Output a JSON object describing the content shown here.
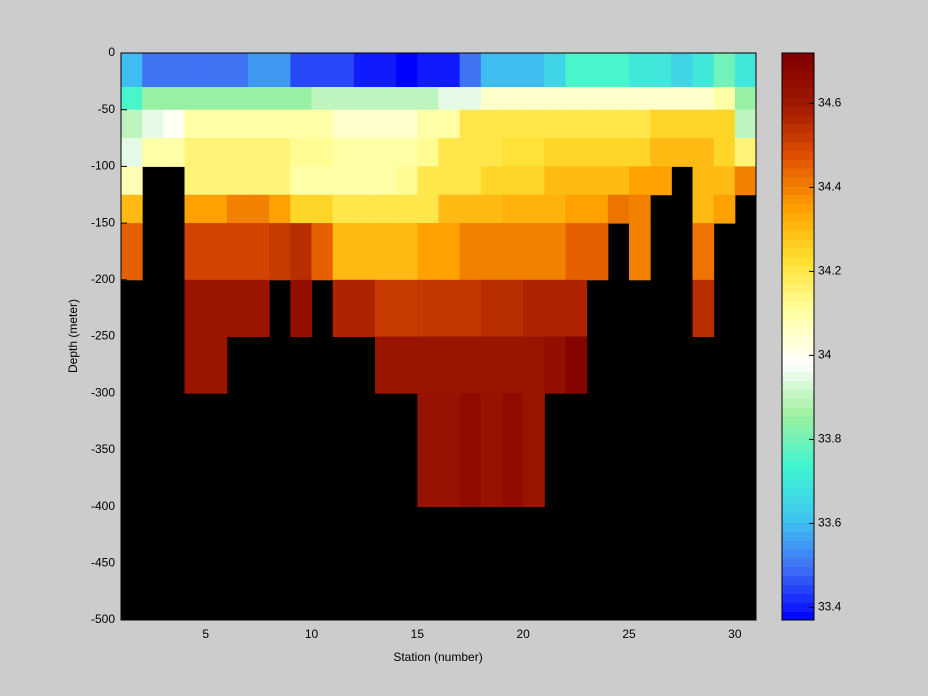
{
  "chart_data": {
    "type": "heatmap",
    "xlabel": "Station (number)",
    "ylabel": "Depth (meter)",
    "x_edges": [
      1,
      2,
      3,
      4,
      5,
      6,
      7,
      8,
      9,
      10,
      11,
      12,
      13,
      14,
      15,
      16,
      17,
      18,
      19,
      20,
      21,
      22,
      23,
      24,
      25,
      26,
      27,
      28,
      29,
      30,
      31
    ],
    "y_edges": [
      0,
      -30,
      -50,
      -75,
      -100,
      -125,
      -150,
      -200,
      -250,
      -300,
      -400,
      -500
    ],
    "xlim": [
      1,
      31
    ],
    "ylim": [
      -500,
      0
    ],
    "xticks": [
      5,
      10,
      15,
      20,
      25,
      30
    ],
    "yticks": [
      0,
      -50,
      -100,
      -150,
      -200,
      -250,
      -300,
      -350,
      -400,
      -450,
      -500
    ],
    "clim": [
      33.37,
      34.72
    ],
    "cticks": [
      33.4,
      33.6,
      33.8,
      34,
      34.2,
      34.4,
      34.6
    ],
    "colormap": [
      "#0000ff",
      "#3f6ff5",
      "#3fc8f0",
      "#40f5d0",
      "#a0f0a0",
      "#ffffff",
      "#ffffa0",
      "#ffe030",
      "#ffa000",
      "#e05000",
      "#a01800",
      "#800000"
    ],
    "nan_color": "#000000",
    "z": [
      [
        33.6,
        33.5,
        33.5,
        33.5,
        33.5,
        33.5,
        33.55,
        33.55,
        33.45,
        33.45,
        33.45,
        33.4,
        33.4,
        33.37,
        33.4,
        33.4,
        33.5,
        33.6,
        33.6,
        33.6,
        33.65,
        33.75,
        33.75,
        33.75,
        33.7,
        33.7,
        33.65,
        33.7,
        33.8,
        33.7
      ],
      [
        33.75,
        33.85,
        33.85,
        33.85,
        33.85,
        33.85,
        33.85,
        33.85,
        33.85,
        33.9,
        33.9,
        33.9,
        33.9,
        33.9,
        33.9,
        33.95,
        33.95,
        34.05,
        34.05,
        34.05,
        34.05,
        34.05,
        34.05,
        34.05,
        34.05,
        34.05,
        34.05,
        34.05,
        34.1,
        33.85
      ],
      [
        33.9,
        33.95,
        34.0,
        34.1,
        34.1,
        34.1,
        34.1,
        34.1,
        34.1,
        34.1,
        34.05,
        34.05,
        34.05,
        34.05,
        34.1,
        34.1,
        34.2,
        34.2,
        34.2,
        34.2,
        34.2,
        34.2,
        34.2,
        34.2,
        34.2,
        34.25,
        34.25,
        34.25,
        34.25,
        33.9
      ],
      [
        33.95,
        34.1,
        34.1,
        34.15,
        34.15,
        34.15,
        34.15,
        34.15,
        34.12,
        34.12,
        34.1,
        34.1,
        34.1,
        34.1,
        34.12,
        34.2,
        34.2,
        34.2,
        34.22,
        34.22,
        34.25,
        34.25,
        34.25,
        34.25,
        34.25,
        34.3,
        34.3,
        34.3,
        34.25,
        34.15
      ],
      [
        34.08,
        null,
        null,
        34.15,
        34.15,
        34.15,
        34.15,
        34.15,
        34.1,
        34.1,
        34.1,
        34.1,
        34.1,
        34.12,
        34.2,
        34.2,
        34.2,
        34.25,
        34.25,
        34.25,
        34.3,
        34.3,
        34.3,
        34.3,
        34.35,
        34.35,
        null,
        34.3,
        34.3,
        34.4
      ],
      [
        34.3,
        null,
        null,
        34.35,
        34.35,
        34.4,
        34.4,
        34.35,
        34.25,
        34.25,
        34.2,
        34.2,
        34.2,
        34.2,
        34.2,
        34.3,
        34.3,
        34.3,
        34.32,
        34.32,
        34.32,
        34.35,
        34.35,
        34.42,
        34.4,
        null,
        null,
        34.3,
        34.35,
        null
      ],
      [
        34.45,
        null,
        null,
        34.5,
        34.5,
        34.5,
        34.5,
        34.52,
        34.55,
        34.45,
        34.3,
        34.3,
        34.3,
        34.3,
        34.35,
        34.35,
        34.4,
        34.4,
        34.4,
        34.4,
        34.4,
        34.45,
        34.45,
        null,
        34.4,
        null,
        null,
        34.42,
        null,
        null
      ],
      [
        null,
        null,
        null,
        34.62,
        34.62,
        34.62,
        34.62,
        null,
        34.65,
        null,
        34.57,
        34.57,
        34.52,
        34.52,
        34.53,
        34.53,
        34.53,
        34.55,
        34.55,
        34.57,
        34.57,
        34.57,
        null,
        null,
        null,
        null,
        null,
        34.55,
        null,
        null
      ],
      [
        null,
        null,
        null,
        34.62,
        34.62,
        null,
        null,
        null,
        null,
        null,
        null,
        null,
        34.62,
        34.62,
        34.62,
        34.62,
        34.62,
        34.62,
        34.62,
        34.62,
        34.65,
        34.7,
        null,
        null,
        null,
        null,
        null,
        null,
        null,
        null
      ],
      [
        null,
        null,
        null,
        null,
        null,
        null,
        null,
        null,
        null,
        null,
        null,
        null,
        null,
        null,
        34.63,
        34.63,
        34.66,
        34.63,
        34.66,
        34.62,
        null,
        null,
        null,
        null,
        null,
        null,
        null,
        null,
        null,
        null
      ],
      [
        null,
        null,
        null,
        null,
        null,
        null,
        null,
        null,
        null,
        null,
        null,
        null,
        null,
        null,
        null,
        null,
        null,
        null,
        null,
        null,
        null,
        null,
        null,
        null,
        null,
        null,
        null,
        null,
        null,
        null
      ]
    ]
  }
}
